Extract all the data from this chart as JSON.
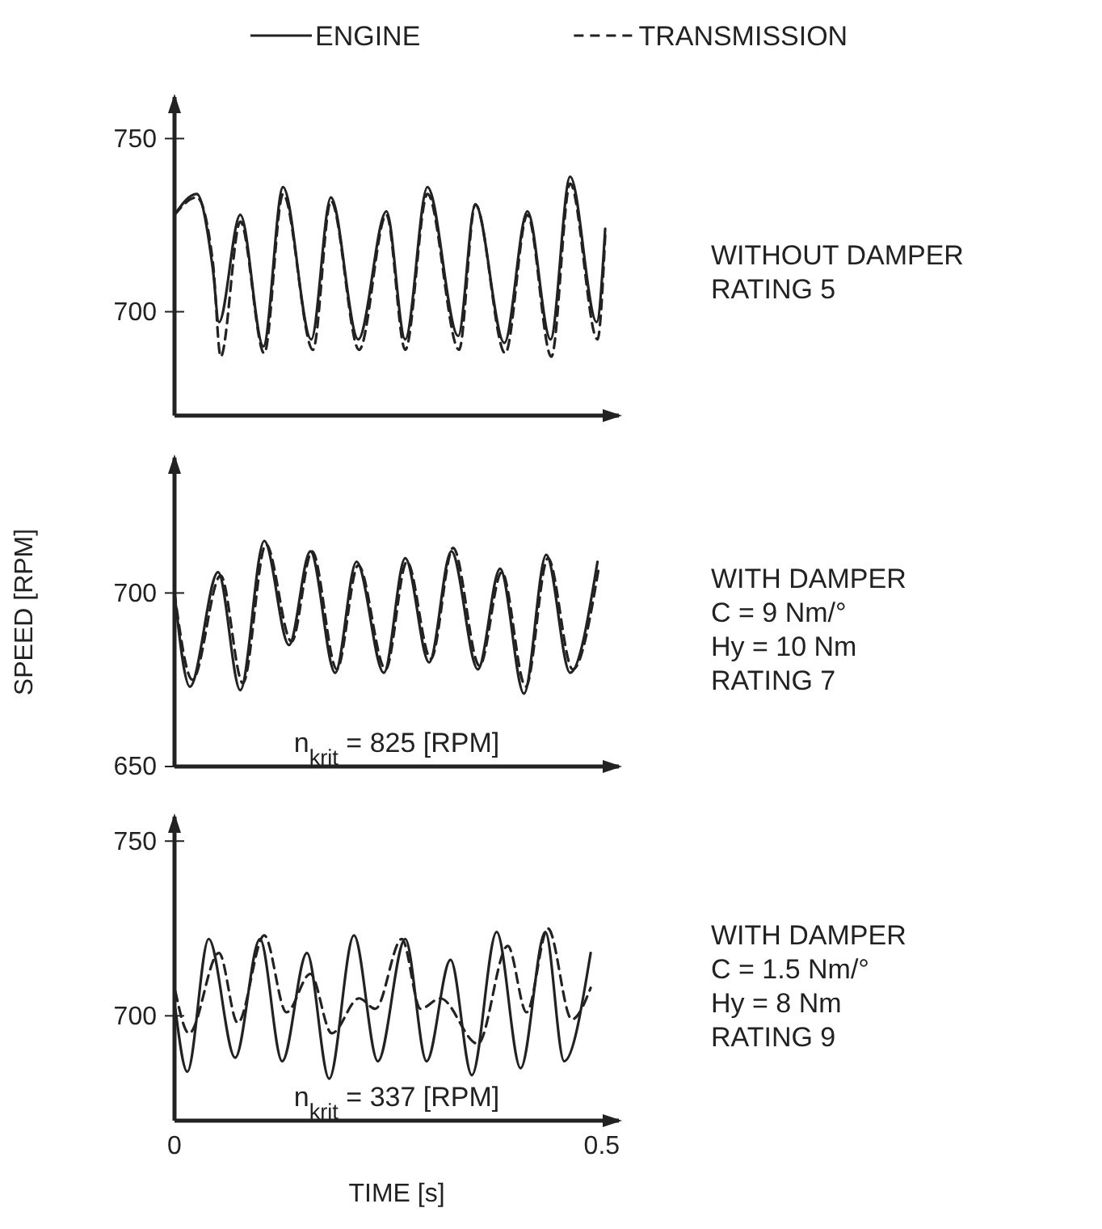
{
  "chart_data": [
    {
      "type": "line",
      "legend": "top",
      "xlim": [
        0,
        0.52
      ],
      "ylim": [
        670,
        762
      ],
      "yticks": [
        700,
        750
      ],
      "tick_labels": "y",
      "annotations": [
        "WITHOUT DAMPER\nRATING 5"
      ],
      "series": [
        {
          "name": "ENGINE",
          "color": "#222222",
          "line_style": "solid",
          "x": [
            0,
            0.026,
            0.045,
            0.052,
            0.077,
            0.104,
            0.127,
            0.16,
            0.183,
            0.215,
            0.248,
            0.27,
            0.296,
            0.332,
            0.352,
            0.386,
            0.413,
            0.44,
            0.463,
            0.494,
            0.504
          ],
          "values": [
            728,
            734,
            712,
            697,
            728,
            690,
            736,
            692,
            733,
            692,
            729,
            692,
            736,
            693,
            731,
            691,
            729,
            692,
            739,
            697,
            724
          ]
        },
        {
          "name": "TRANSMISSION",
          "color": "#222222",
          "line_style": "dashed",
          "x": [
            0,
            0.026,
            0.045,
            0.054,
            0.077,
            0.105,
            0.127,
            0.162,
            0.183,
            0.216,
            0.248,
            0.27,
            0.296,
            0.333,
            0.352,
            0.387,
            0.413,
            0.441,
            0.463,
            0.495,
            0.504
          ],
          "values": [
            728,
            733,
            714,
            687,
            726,
            688,
            734,
            689,
            732,
            689,
            728,
            689,
            734,
            689,
            731,
            688,
            728,
            687,
            737,
            692,
            722
          ]
        }
      ]
    },
    {
      "type": "line",
      "xlim": [
        0,
        0.52
      ],
      "ylim": [
        650,
        739
      ],
      "yticks": [
        650,
        700
      ],
      "tick_labels": "y",
      "ylabel": "SPEED [RPM]",
      "annotations": [
        "WITH DAMPER\nC  =  9  Nm/°\nHy = 10  Nm\nRATING 7",
        "n$_{krit}$ = 825  [RPM]"
      ],
      "series": [
        {
          "color": "#222222",
          "line_style": "solid",
          "x": [
            0,
            0.018,
            0.051,
            0.077,
            0.105,
            0.134,
            0.159,
            0.188,
            0.213,
            0.245,
            0.27,
            0.298,
            0.324,
            0.355,
            0.381,
            0.409,
            0.435,
            0.463,
            0.495
          ],
          "values": [
            700,
            673,
            706,
            672,
            715,
            685,
            712,
            677,
            709,
            677,
            710,
            680,
            712,
            678,
            707,
            671,
            711,
            677,
            709
          ]
        },
        {
          "color": "#222222",
          "line_style": "dashed",
          "x": [
            0,
            0.021,
            0.054,
            0.08,
            0.107,
            0.137,
            0.161,
            0.19,
            0.215,
            0.247,
            0.272,
            0.3,
            0.326,
            0.357,
            0.383,
            0.411,
            0.437,
            0.466,
            0.497
          ],
          "values": [
            700,
            675,
            705,
            674,
            714,
            686,
            712,
            678,
            708,
            678,
            709,
            681,
            713,
            679,
            706,
            673,
            710,
            678,
            708
          ]
        }
      ]
    },
    {
      "type": "line",
      "xlim": [
        0,
        0.52
      ],
      "ylim": [
        670,
        757
      ],
      "yticks": [
        700,
        750
      ],
      "xticks": [
        0,
        0.5
      ],
      "xlabel": "TIME [s]",
      "annotations": [
        "WITH DAMPER\nC  = 1.5  Nm/°\nHy = 8   Nm\nRATING 9",
        "n$_{krit}$ = 337 [RPM]"
      ],
      "series": [
        {
          "color": "#222222",
          "line_style": "solid",
          "x": [
            0.001,
            0.015,
            0.04,
            0.071,
            0.1,
            0.126,
            0.155,
            0.181,
            0.21,
            0.238,
            0.27,
            0.295,
            0.323,
            0.348,
            0.377,
            0.405,
            0.434,
            0.456,
            0.487
          ],
          "values": [
            702,
            684,
            722,
            688,
            722,
            687,
            718,
            682,
            723,
            687,
            722,
            687,
            716,
            683,
            724,
            685,
            724,
            687,
            718
          ]
        },
        {
          "color": "#222222",
          "line_style": "dashed",
          "x": [
            0.001,
            0.017,
            0.052,
            0.074,
            0.105,
            0.131,
            0.159,
            0.184,
            0.216,
            0.235,
            0.266,
            0.288,
            0.311,
            0.355,
            0.39,
            0.412,
            0.437,
            0.465,
            0.487
          ],
          "values": [
            707,
            695,
            718,
            698,
            723,
            701,
            712,
            695,
            705,
            702,
            722,
            702,
            705,
            692,
            720,
            701,
            725,
            699,
            708
          ]
        }
      ]
    }
  ]
}
